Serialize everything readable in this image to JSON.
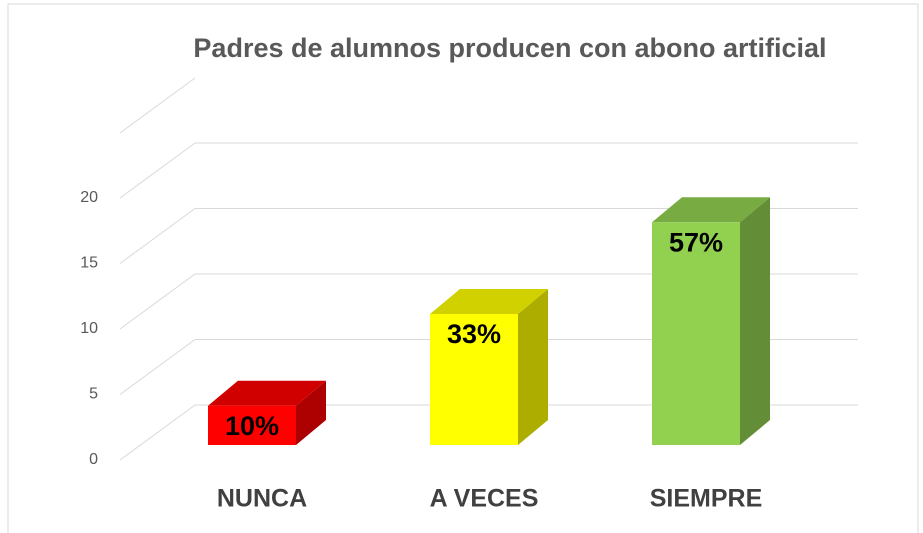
{
  "chart_data": {
    "type": "bar3d",
    "title": "Padres de alumnos producen con abono artificial",
    "categories": [
      "NUNCA",
      "A VECES",
      "SIEMPRE"
    ],
    "values": [
      3,
      10,
      17
    ],
    "value_labels": [
      "10%",
      "33%",
      "57%"
    ],
    "colors": [
      "#ff0000",
      "#ffff00",
      "#92d050"
    ],
    "ylim": [
      0,
      20
    ],
    "yticks": [
      0,
      5,
      10,
      15,
      20
    ],
    "grid": true
  }
}
